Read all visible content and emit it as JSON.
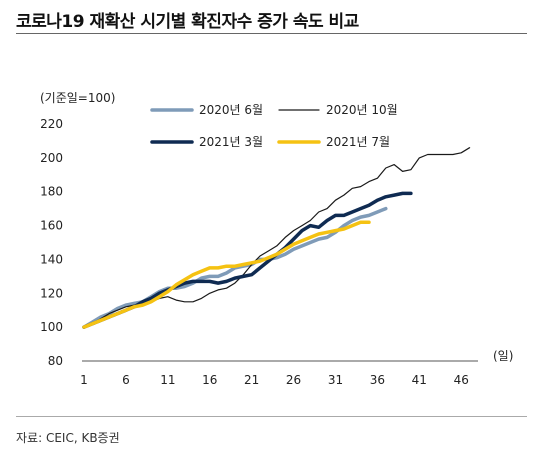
{
  "title": "코로나19 재확산 시기별 확진자수 증가 속도 비교",
  "source": "자료: CEIC, KB증권",
  "chart_data": {
    "type": "line",
    "ylabel": "(기준일=100)",
    "xlabel": "(일)",
    "ylim": [
      80,
      220
    ],
    "yticks": [
      80,
      100,
      120,
      140,
      160,
      180,
      200,
      220
    ],
    "xlim": [
      1,
      48
    ],
    "xticks": [
      1,
      6,
      11,
      16,
      21,
      26,
      31,
      36,
      41,
      46
    ],
    "legend_position": "top",
    "grid": false,
    "series": [
      {
        "name": "2020년 6월",
        "color": "#7f9bb8",
        "width": 3.5,
        "x": [
          1,
          2,
          3,
          4,
          5,
          6,
          7,
          8,
          9,
          10,
          11,
          12,
          13,
          14,
          15,
          16,
          17,
          18,
          19,
          20,
          21,
          22,
          23,
          24,
          25,
          26,
          27,
          28,
          29,
          30,
          31,
          32,
          33,
          34,
          35,
          36,
          37
        ],
        "y": [
          100,
          103,
          106,
          108,
          111,
          113,
          114,
          115,
          118,
          121,
          123,
          123,
          124,
          126,
          129,
          130,
          130,
          132,
          135,
          136,
          137,
          140,
          140,
          141,
          143,
          146,
          148,
          150,
          152,
          153,
          156,
          160,
          163,
          165,
          166,
          168,
          170
        ]
      },
      {
        "name": "2020년 10월",
        "color": "#1a1a1a",
        "width": 1.2,
        "x": [
          1,
          2,
          3,
          4,
          5,
          6,
          7,
          8,
          9,
          10,
          11,
          12,
          13,
          14,
          15,
          16,
          17,
          18,
          19,
          20,
          21,
          22,
          23,
          24,
          25,
          26,
          27,
          28,
          29,
          30,
          31,
          32,
          33,
          34,
          35,
          36,
          37,
          38,
          39,
          40,
          41,
          42,
          43,
          44,
          45,
          46,
          47
        ],
        "y": [
          100,
          102,
          105,
          108,
          110,
          112,
          113,
          113,
          115,
          117,
          118,
          116,
          115,
          115,
          117,
          120,
          122,
          123,
          126,
          131,
          137,
          142,
          145,
          148,
          153,
          157,
          160,
          163,
          168,
          170,
          175,
          178,
          182,
          183,
          186,
          188,
          194,
          196,
          192,
          193,
          200,
          202,
          202,
          202,
          202,
          203,
          206
        ]
      },
      {
        "name": "2021년 3월",
        "color": "#0f2b52",
        "width": 3.5,
        "x": [
          1,
          2,
          3,
          4,
          5,
          6,
          7,
          8,
          9,
          10,
          11,
          12,
          13,
          14,
          15,
          16,
          17,
          18,
          19,
          20,
          21,
          22,
          23,
          24,
          25,
          26,
          27,
          28,
          29,
          30,
          31,
          32,
          33,
          34,
          35,
          36,
          37,
          38,
          39,
          40
        ],
        "y": [
          100,
          102,
          104,
          106,
          108,
          110,
          112,
          115,
          117,
          120,
          122,
          124,
          126,
          127,
          127,
          127,
          126,
          127,
          129,
          130,
          131,
          135,
          139,
          143,
          147,
          152,
          157,
          160,
          159,
          163,
          166,
          166,
          168,
          170,
          172,
          175,
          177,
          178,
          179,
          179
        ]
      },
      {
        "name": "2021년 7월",
        "color": "#f5c212",
        "width": 3.5,
        "x": [
          1,
          2,
          3,
          4,
          5,
          6,
          7,
          8,
          9,
          10,
          11,
          12,
          13,
          14,
          15,
          16,
          17,
          18,
          19,
          20,
          21,
          22,
          23,
          24,
          25,
          26,
          27,
          28,
          29,
          30,
          31,
          32,
          33,
          34,
          35
        ],
        "y": [
          100,
          102,
          104,
          106,
          108,
          110,
          112,
          113,
          115,
          118,
          121,
          125,
          128,
          131,
          133,
          135,
          135,
          136,
          136,
          137,
          138,
          139,
          141,
          143,
          146,
          149,
          151,
          153,
          155,
          156,
          157,
          158,
          160,
          162,
          162
        ]
      }
    ]
  }
}
